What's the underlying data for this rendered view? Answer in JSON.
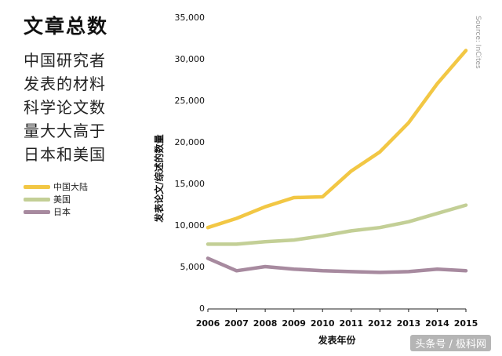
{
  "chart_data": {
    "type": "line",
    "title": "文章总数",
    "subtitle": [
      "中国研究者",
      "发表的材料",
      "科学论文数",
      "量大大高于",
      "日本和美国"
    ],
    "xlabel": "发表年份",
    "ylabel": "发表论文/综述的数量",
    "source": "Source: InCites",
    "x": [
      2006,
      2007,
      2008,
      2009,
      2010,
      2011,
      2012,
      2013,
      2014,
      2015
    ],
    "ylim": [
      0,
      35000
    ],
    "yticks": [
      "0",
      "5,000",
      "10,000",
      "15,000",
      "20,000",
      "25,000",
      "30,000",
      "35,000"
    ],
    "ytick_values": [
      0,
      5000,
      10000,
      15000,
      20000,
      25000,
      30000,
      35000
    ],
    "grid": false,
    "legend_position": "left",
    "series": [
      {
        "name": "中国大陆",
        "color": "#f2c744",
        "values": [
          9700,
          10800,
          12200,
          13300,
          13400,
          16500,
          18800,
          22300,
          27000,
          31000
        ]
      },
      {
        "name": "美国",
        "color": "#c3cf96",
        "values": [
          7700,
          7700,
          8000,
          8200,
          8700,
          9300,
          9700,
          10400,
          11400,
          12400
        ]
      },
      {
        "name": "日本",
        "color": "#a78a9f",
        "values": [
          6000,
          4500,
          5000,
          4700,
          4500,
          4400,
          4300,
          4400,
          4700,
          4500
        ]
      }
    ]
  },
  "watermark": "头条号 / 极科网"
}
